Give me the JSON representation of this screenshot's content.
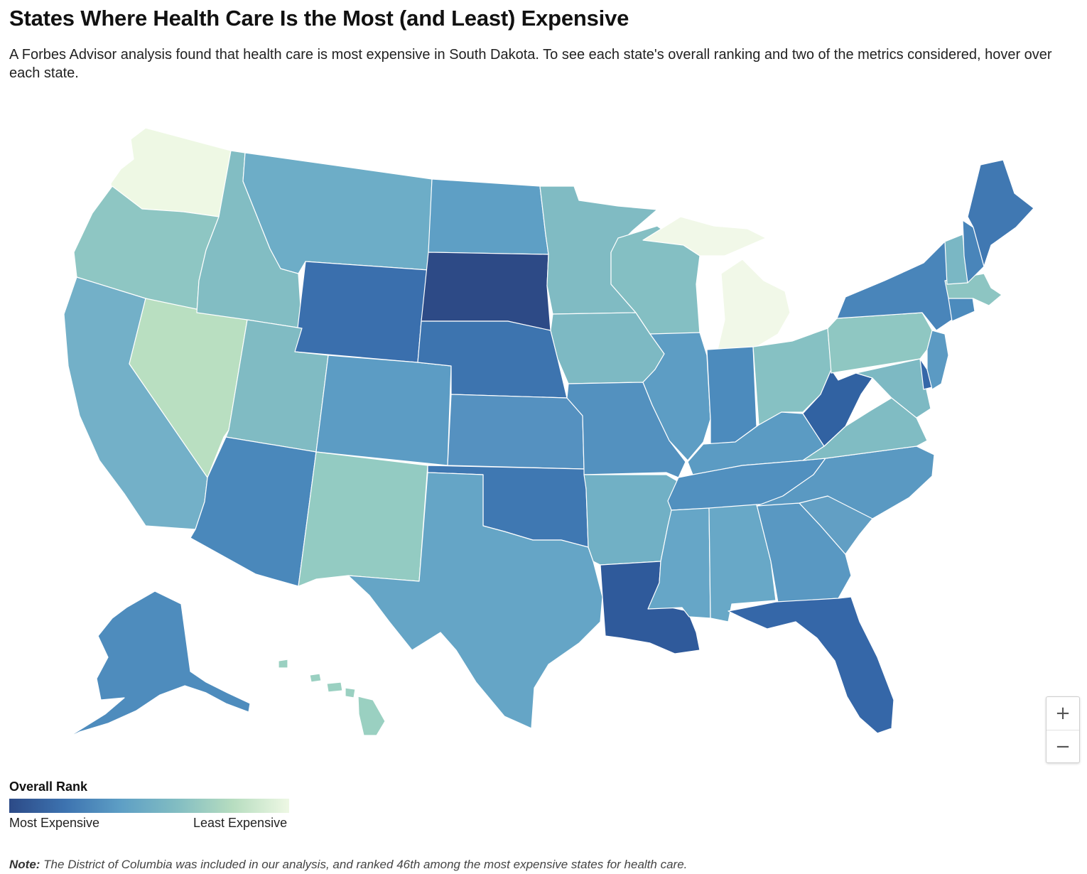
{
  "title": "States Where Health Care Is the Most (and Least) Expensive",
  "subtitle": "A Forbes Advisor analysis found that health care is most expensive in South Dakota. To see each state's overall ranking and two of the metrics considered, hover over each state.",
  "legend": {
    "title": "Overall Rank",
    "low_label": "Most Expensive",
    "high_label": "Least Expensive",
    "gradient": [
      "#2c4a87",
      "#3d73b0",
      "#5e9fc5",
      "#82bdc2",
      "#b7ddc0",
      "#eef8e4"
    ]
  },
  "zoom": {
    "in_label": "+",
    "out_label": "−"
  },
  "note": {
    "label": "Note:",
    "text": " The District of Columbia was included in our analysis, and ranked 46th among the most expensive states for health care."
  },
  "states": [
    {
      "id": "WA",
      "color": "#eef8e4"
    },
    {
      "id": "OR",
      "color": "#8ec6c3"
    },
    {
      "id": "CA",
      "color": "#73b0c8"
    },
    {
      "id": "NV",
      "color": "#b9dfc1"
    },
    {
      "id": "ID",
      "color": "#82bdc3"
    },
    {
      "id": "MT",
      "color": "#6dadc7"
    },
    {
      "id": "WY",
      "color": "#3a6fad"
    },
    {
      "id": "UT",
      "color": "#80bbc3"
    },
    {
      "id": "AZ",
      "color": "#4a88bb"
    },
    {
      "id": "CO",
      "color": "#5c9cc4"
    },
    {
      "id": "NM",
      "color": "#93cbc2"
    },
    {
      "id": "ND",
      "color": "#5e9fc5"
    },
    {
      "id": "SD",
      "color": "#2d4a86"
    },
    {
      "id": "NE",
      "color": "#3d74af"
    },
    {
      "id": "KS",
      "color": "#5591c0"
    },
    {
      "id": "OK",
      "color": "#3f78b2"
    },
    {
      "id": "TX",
      "color": "#65a5c6"
    },
    {
      "id": "MN",
      "color": "#80bbc3"
    },
    {
      "id": "IA",
      "color": "#7db9c3"
    },
    {
      "id": "MO",
      "color": "#5391bf"
    },
    {
      "id": "AR",
      "color": "#71b0c5"
    },
    {
      "id": "LA",
      "color": "#2f5a9b"
    },
    {
      "id": "WI",
      "color": "#84bfc3"
    },
    {
      "id": "IL",
      "color": "#5d9dc4"
    },
    {
      "id": "MI",
      "color": "#f1f8e8"
    },
    {
      "id": "IN",
      "color": "#4c8bbd"
    },
    {
      "id": "OH",
      "color": "#86c1c3"
    },
    {
      "id": "KY",
      "color": "#5b9bc3"
    },
    {
      "id": "TN",
      "color": "#5190bf"
    },
    {
      "id": "MS",
      "color": "#66a6c7"
    },
    {
      "id": "AL",
      "color": "#68a8c7"
    },
    {
      "id": "GA",
      "color": "#5998c2"
    },
    {
      "id": "FL",
      "color": "#3567a8"
    },
    {
      "id": "SC",
      "color": "#629fc4"
    },
    {
      "id": "NC",
      "color": "#5a99c2"
    },
    {
      "id": "VA",
      "color": "#80bcc3"
    },
    {
      "id": "WV",
      "color": "#3162a2"
    },
    {
      "id": "PA",
      "color": "#8fc7c2"
    },
    {
      "id": "NY",
      "color": "#4985ba"
    },
    {
      "id": "VT",
      "color": "#7ab7c4"
    },
    {
      "id": "NH",
      "color": "#4985ba"
    },
    {
      "id": "ME",
      "color": "#4078b2"
    },
    {
      "id": "MA",
      "color": "#8dc5c2"
    },
    {
      "id": "CT",
      "color": "#4c8bbd"
    },
    {
      "id": "NJ",
      "color": "#5b9ac3"
    },
    {
      "id": "DE",
      "color": "#3567a8"
    },
    {
      "id": "MD",
      "color": "#7db9c3"
    },
    {
      "id": "AK",
      "color": "#4e8cbd"
    },
    {
      "id": "HI",
      "color": "#9ad0c1"
    }
  ]
}
